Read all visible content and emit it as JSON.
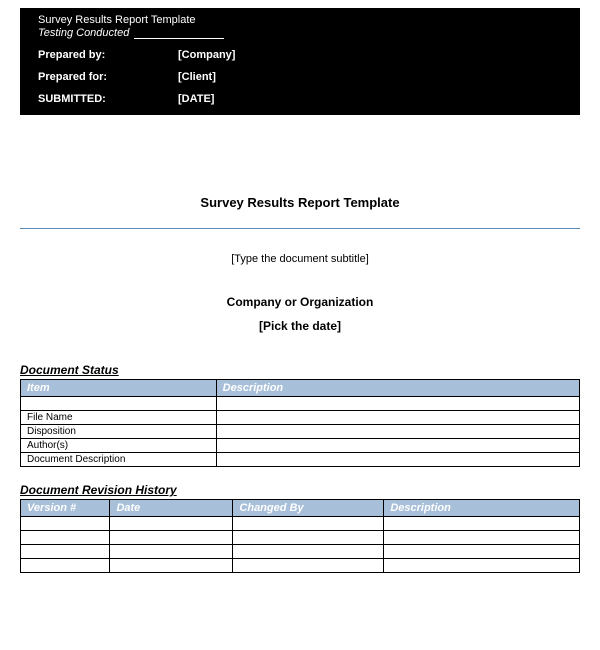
{
  "header": {
    "title": "Survey Results Report Template",
    "subtitle": "Testing Conducted",
    "rows": [
      {
        "label": "Prepared by:",
        "value": "[Company]"
      },
      {
        "label": "Prepared for:",
        "value": "[Client]"
      },
      {
        "label": "SUBMITTED:",
        "value": "[DATE]"
      }
    ]
  },
  "main": {
    "title": "Survey Results Report Template",
    "subtitle": "[Type the document subtitle]",
    "company": "Company or Organization",
    "date": "[Pick the date]"
  },
  "status": {
    "title": "Document Status",
    "columns": [
      "Item",
      "Description"
    ],
    "rows": [
      [
        "",
        ""
      ],
      [
        "File Name",
        ""
      ],
      [
        "Disposition",
        ""
      ],
      [
        "Author(s)",
        ""
      ],
      [
        "Document Description",
        ""
      ]
    ]
  },
  "history": {
    "title": "Document Revision History",
    "columns": [
      "Version #",
      "Date",
      "Changed By",
      "Description"
    ],
    "rows": [
      [
        "",
        "",
        "",
        ""
      ],
      [
        "",
        "",
        "",
        ""
      ],
      [
        "",
        "",
        "",
        ""
      ],
      [
        "",
        "",
        "",
        ""
      ]
    ]
  },
  "colors": {
    "header_bg": "#000000",
    "header_text": "#ffffff",
    "divider": "#5b8db8",
    "th_bg": "#a8bfd9",
    "th_text": "#ffffff",
    "border": "#000000"
  }
}
